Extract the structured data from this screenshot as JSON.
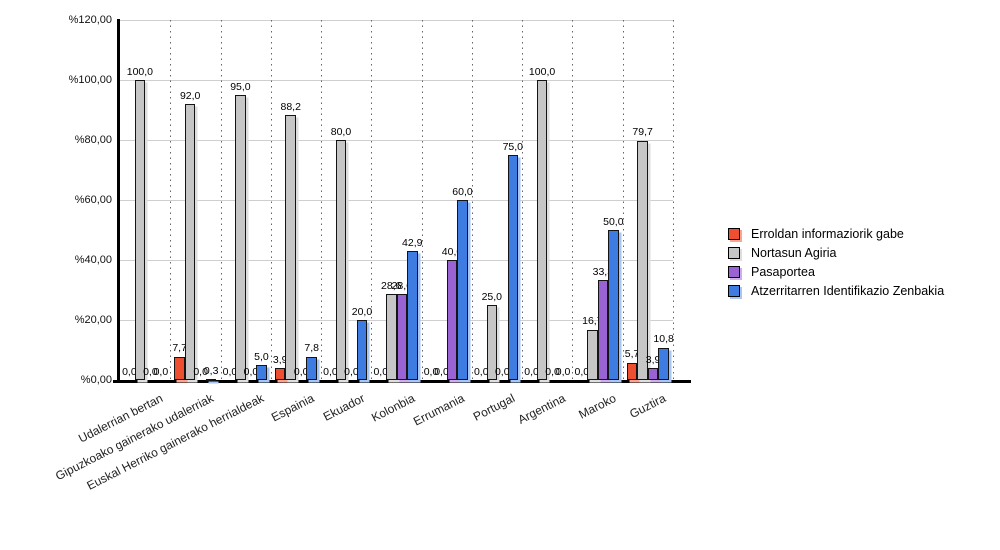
{
  "chart_data": {
    "type": "bar",
    "title": "",
    "categories": [
      "Udalerrian bertan",
      "Gipuzkoako gainerako udalerriak",
      "Euskal Herriko gainerako herrialdeak",
      "Espainia",
      "Ekuador",
      "Kolonbia",
      "Errumania",
      "Portugal",
      "Argentina",
      "Maroko",
      "Guztira"
    ],
    "series": [
      {
        "name": "Erroldan informaziorik gabe",
        "color": "#ee4f30",
        "shadow_color": "#f9a593",
        "values": [
          0.0,
          7.7,
          0.0,
          3.9,
          0.0,
          0.0,
          0.0,
          0.0,
          0.0,
          0.0,
          5.7
        ]
      },
      {
        "name": "Nortasun Agiria",
        "color": "#c6c6c6",
        "shadow_color": "#dedede",
        "values": [
          100.0,
          92.0,
          95.0,
          88.2,
          80.0,
          28.6,
          0.0,
          25.0,
          100.0,
          16.7,
          79.7
        ]
      },
      {
        "name": "Pasaportea",
        "color": "#9a63d4",
        "shadow_color": "#ccafea",
        "values": [
          0.0,
          0.0,
          0.0,
          0.0,
          0.0,
          28.6,
          40.0,
          0.0,
          0.0,
          33.3,
          3.9
        ]
      },
      {
        "name": "Atzerritarren Identifikazio Zenbakia",
        "color": "#3f7ce2",
        "shadow_color": "#a8c5f3",
        "values": [
          0.0,
          0.3,
          5.0,
          7.8,
          20.0,
          42.9,
          60.0,
          75.0,
          0.0,
          50.0,
          10.8
        ]
      }
    ],
    "y_axis": {
      "tick_labels": [
        "%120,00",
        "%100,00",
        "%80,00",
        "%60,00",
        "%40,00",
        "%20,00",
        "%0,00"
      ],
      "tick_values": [
        120,
        100,
        80,
        60,
        40,
        20,
        0
      ],
      "min": 0,
      "max": 120
    },
    "value_label_decimal_separator": ",",
    "grid": {
      "horizontal": "solid",
      "vertical": "dotted"
    },
    "legend_position": "right"
  }
}
